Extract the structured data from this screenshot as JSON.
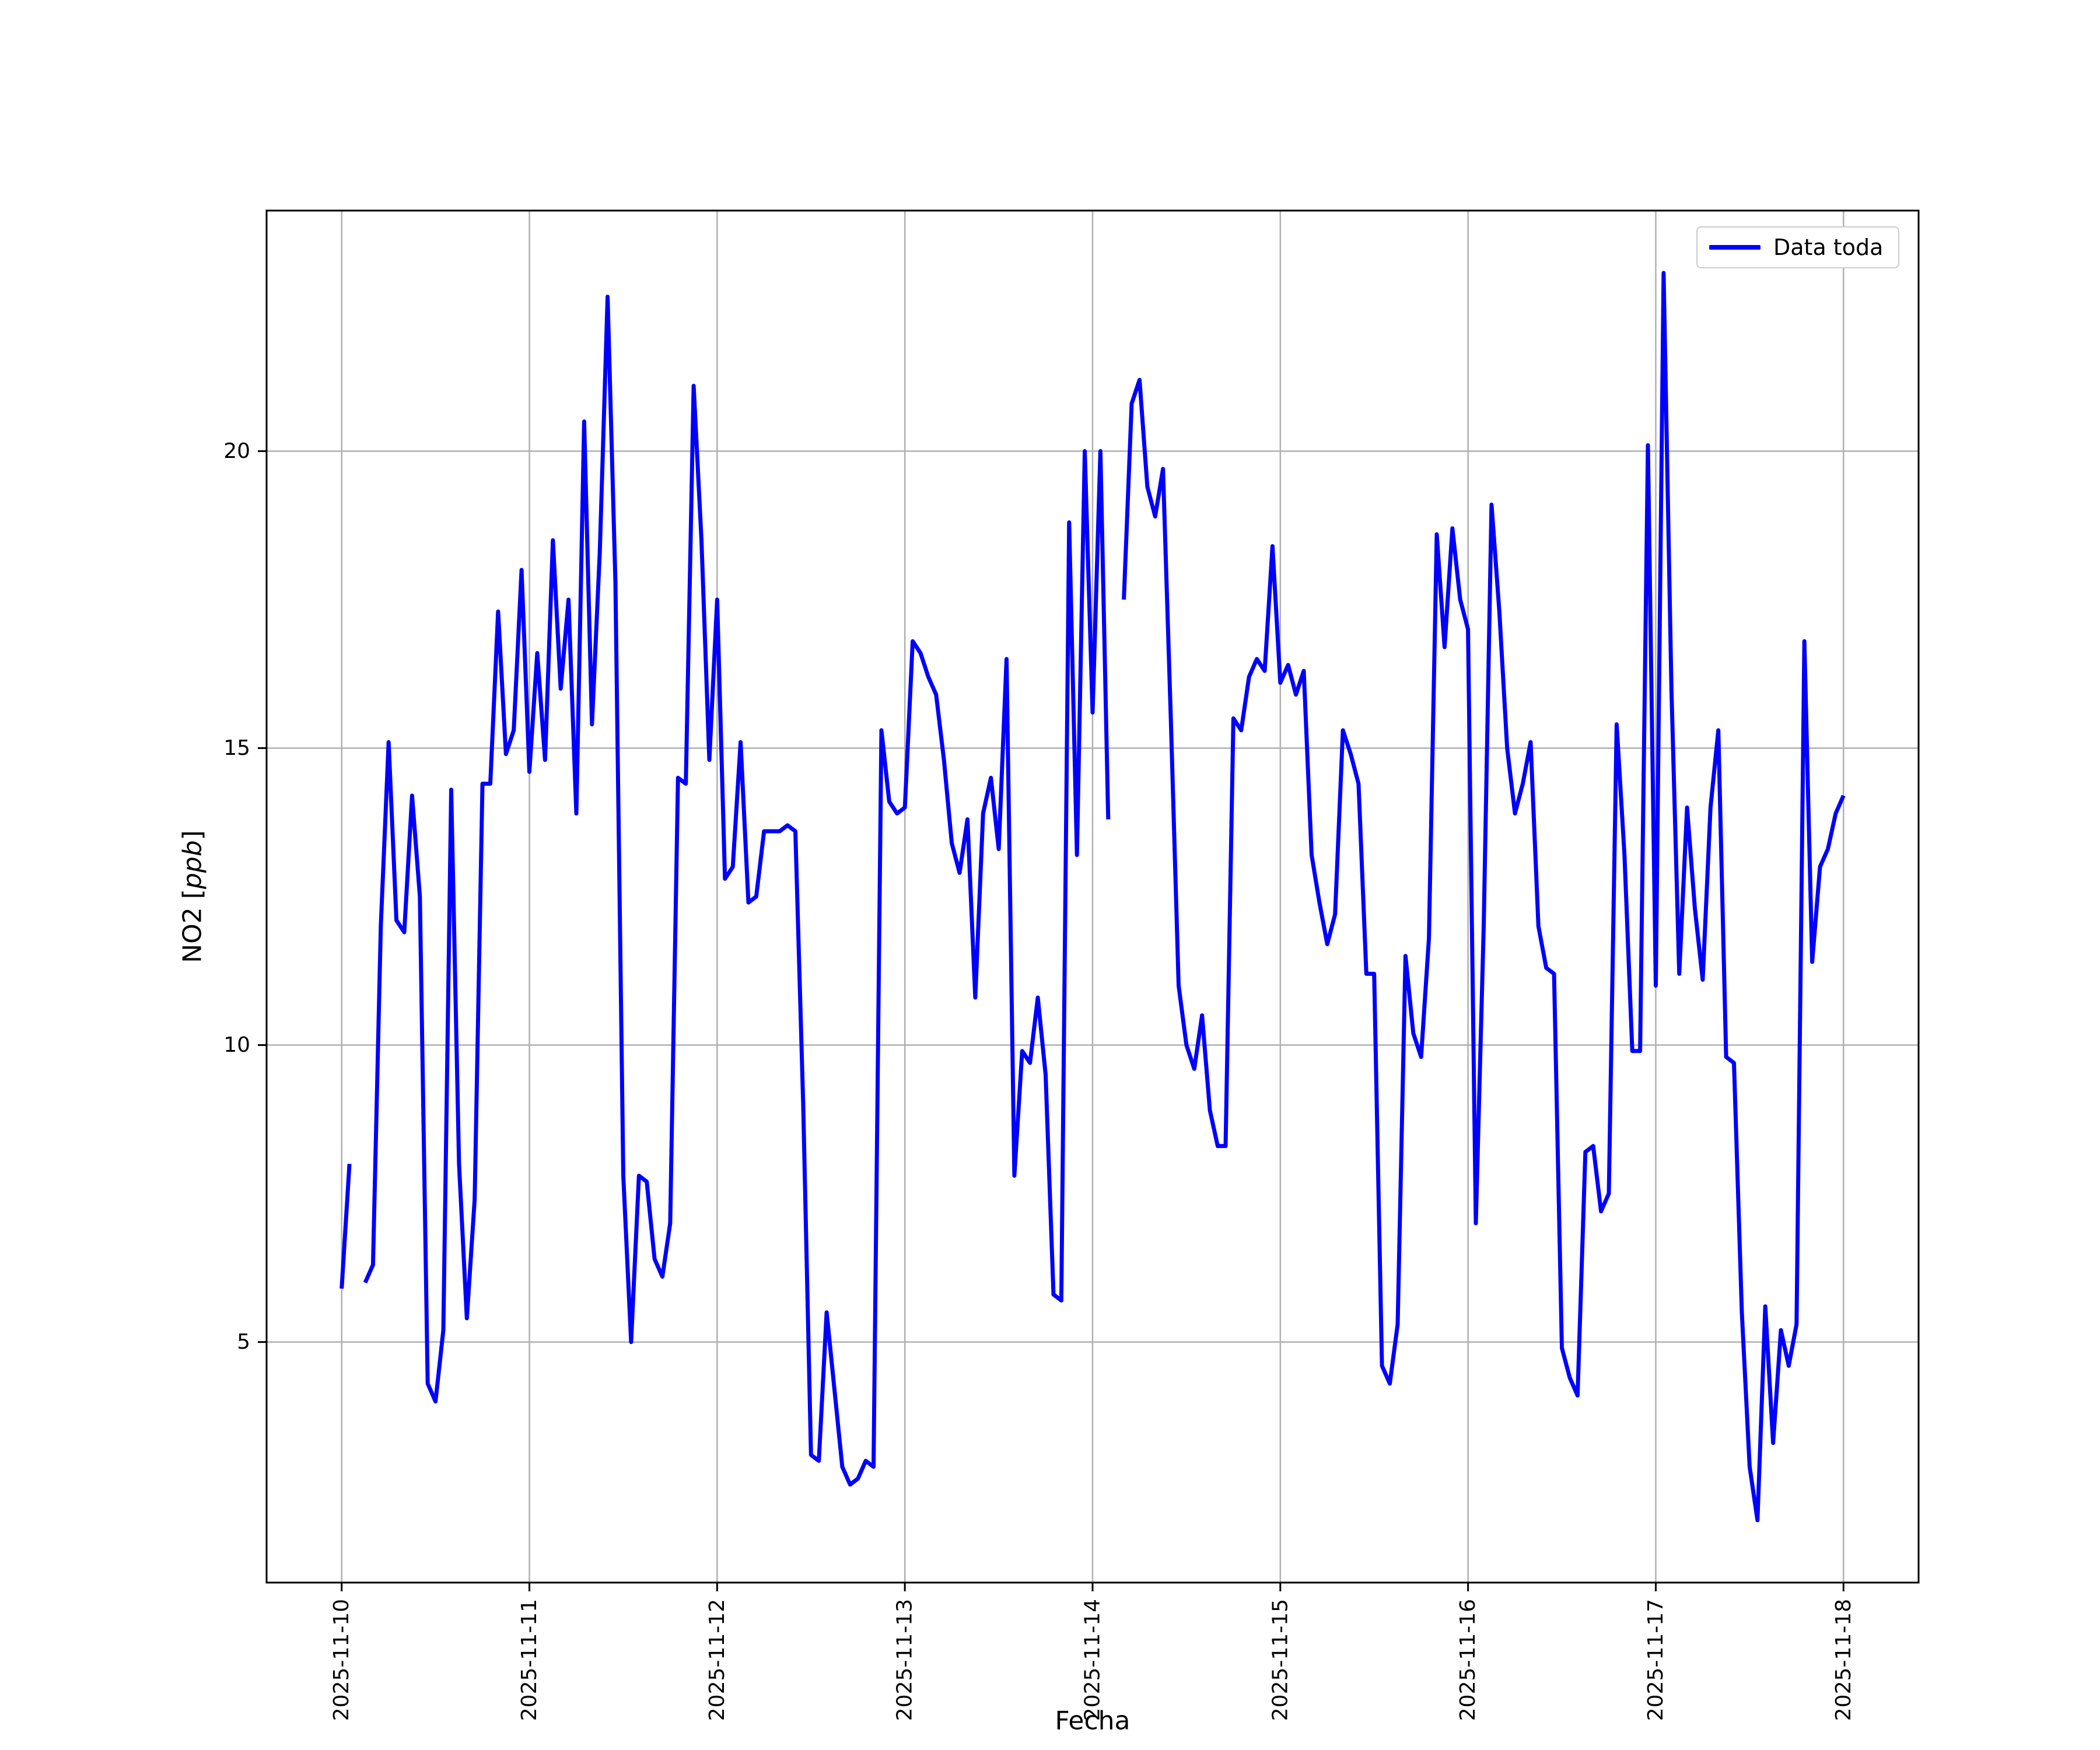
{
  "figure": {
    "background_color": "#ffffff",
    "xlabel": "Fecha",
    "ylabel_prefix": "NO2 [",
    "ylabel_italic": "ppb",
    "ylabel_suffix": "]",
    "legend_label": "Data toda"
  },
  "chart_data": {
    "type": "line",
    "title": "",
    "xlabel": "Fecha",
    "ylabel": "NO2 [ppb]",
    "grid": true,
    "legend_position": "upper right",
    "line_color": "#0000ff",
    "grid_color": "#b0b0b0",
    "x_unit": "hours since 2025-11-10 00:00 (1 point per hour)",
    "x_start_hour": 0,
    "x_step_hours": 1,
    "xlim_hours": [
      -9.6,
      201.6
    ],
    "ylim": [
      0.95,
      24.05
    ],
    "x_tick_hours": [
      0,
      24,
      48,
      72,
      96,
      120,
      144,
      168,
      192
    ],
    "x_tick_labels": [
      "2025-11-10",
      "2025-11-11",
      "2025-11-12",
      "2025-11-13",
      "2025-11-14",
      "2025-11-15",
      "2025-11-16",
      "2025-11-17",
      "2025-11-18"
    ],
    "y_ticks": [
      5,
      10,
      15,
      20
    ],
    "series": [
      {
        "name": "Data toda",
        "values": [
          5.9,
          8.0,
          null,
          6.0,
          6.3,
          12.0,
          15.1,
          12.1,
          11.9,
          14.2,
          12.5,
          4.3,
          4.0,
          5.2,
          14.3,
          8.0,
          5.4,
          7.4,
          14.4,
          14.4,
          17.3,
          14.9,
          15.3,
          18.0,
          14.6,
          16.6,
          14.8,
          18.5,
          16.0,
          17.5,
          13.9,
          20.5,
          15.4,
          18.3,
          22.6,
          17.8,
          7.8,
          5.0,
          7.8,
          7.7,
          6.4,
          6.1,
          7.0,
          14.5,
          14.4,
          21.1,
          18.5,
          14.8,
          17.5,
          12.8,
          13.0,
          15.1,
          12.4,
          12.5,
          13.6,
          13.6,
          13.6,
          13.7,
          13.6,
          9.0,
          3.1,
          3.0,
          5.5,
          4.2,
          2.9,
          2.6,
          2.7,
          3.0,
          2.9,
          15.3,
          14.1,
          13.9,
          14.0,
          16.8,
          16.6,
          16.2,
          15.9,
          14.8,
          13.4,
          12.9,
          13.8,
          10.8,
          13.9,
          14.5,
          13.3,
          16.5,
          7.8,
          9.9,
          9.7,
          10.8,
          9.5,
          5.8,
          5.7,
          18.8,
          13.2,
          20.0,
          15.6,
          20.0,
          13.8,
          null,
          17.5,
          20.8,
          21.2,
          19.4,
          18.9,
          19.7,
          15.5,
          11.0,
          10.0,
          9.6,
          10.5,
          8.9,
          8.3,
          8.3,
          15.5,
          15.3,
          16.2,
          16.5,
          16.3,
          18.4,
          16.1,
          16.4,
          15.9,
          16.3,
          13.2,
          12.4,
          11.7,
          12.2,
          15.3,
          14.9,
          14.4,
          11.2,
          11.2,
          4.6,
          4.3,
          5.3,
          11.5,
          10.2,
          9.8,
          11.8,
          18.6,
          16.7,
          18.7,
          17.5,
          17.0,
          7.0,
          12.0,
          19.1,
          17.3,
          15.0,
          13.9,
          14.4,
          15.1,
          12.0,
          11.3,
          11.2,
          4.9,
          4.4,
          4.1,
          8.2,
          8.3,
          7.2,
          7.5,
          15.4,
          13.2,
          9.9,
          9.9,
          20.1,
          11.0,
          23.0,
          16.0,
          11.2,
          14.0,
          12.3,
          11.1,
          14.0,
          15.3,
          9.8,
          9.7,
          5.5,
          2.9,
          2.0,
          5.6,
          3.3,
          5.2,
          4.6,
          5.3,
          16.8,
          11.4,
          13.0,
          13.3,
          13.9,
          14.2
        ]
      }
    ]
  }
}
